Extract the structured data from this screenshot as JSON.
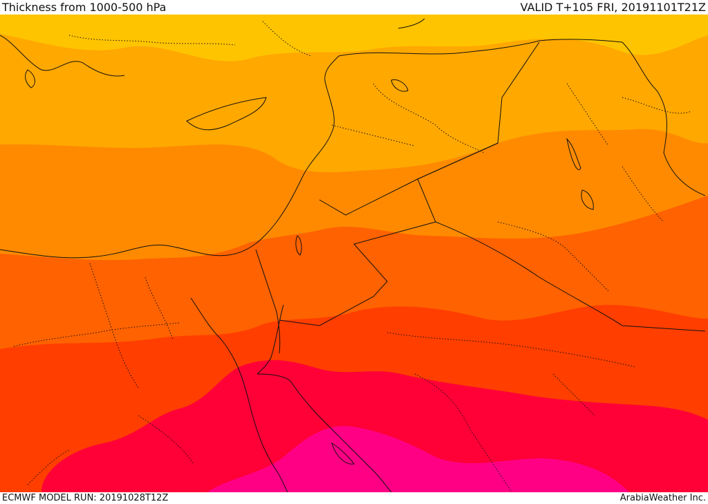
{
  "header": {
    "title": "Thickness from 1000-500 hPa",
    "valid": "VALID T+105 FRI, 20191101T21Z"
  },
  "footer": {
    "model_run": "ECMWF MODEL RUN: 20191028T12Z",
    "credit": "ArabiaWeather Inc."
  },
  "colors": {
    "band_1": "#ffc400",
    "band_2": "#ffa800",
    "band_3": "#ff8a00",
    "band_4": "#ff6200",
    "band_5": "#ff3e00",
    "band_6": "#ff0037",
    "band_7": "#ff0085",
    "border": "#111111"
  }
}
